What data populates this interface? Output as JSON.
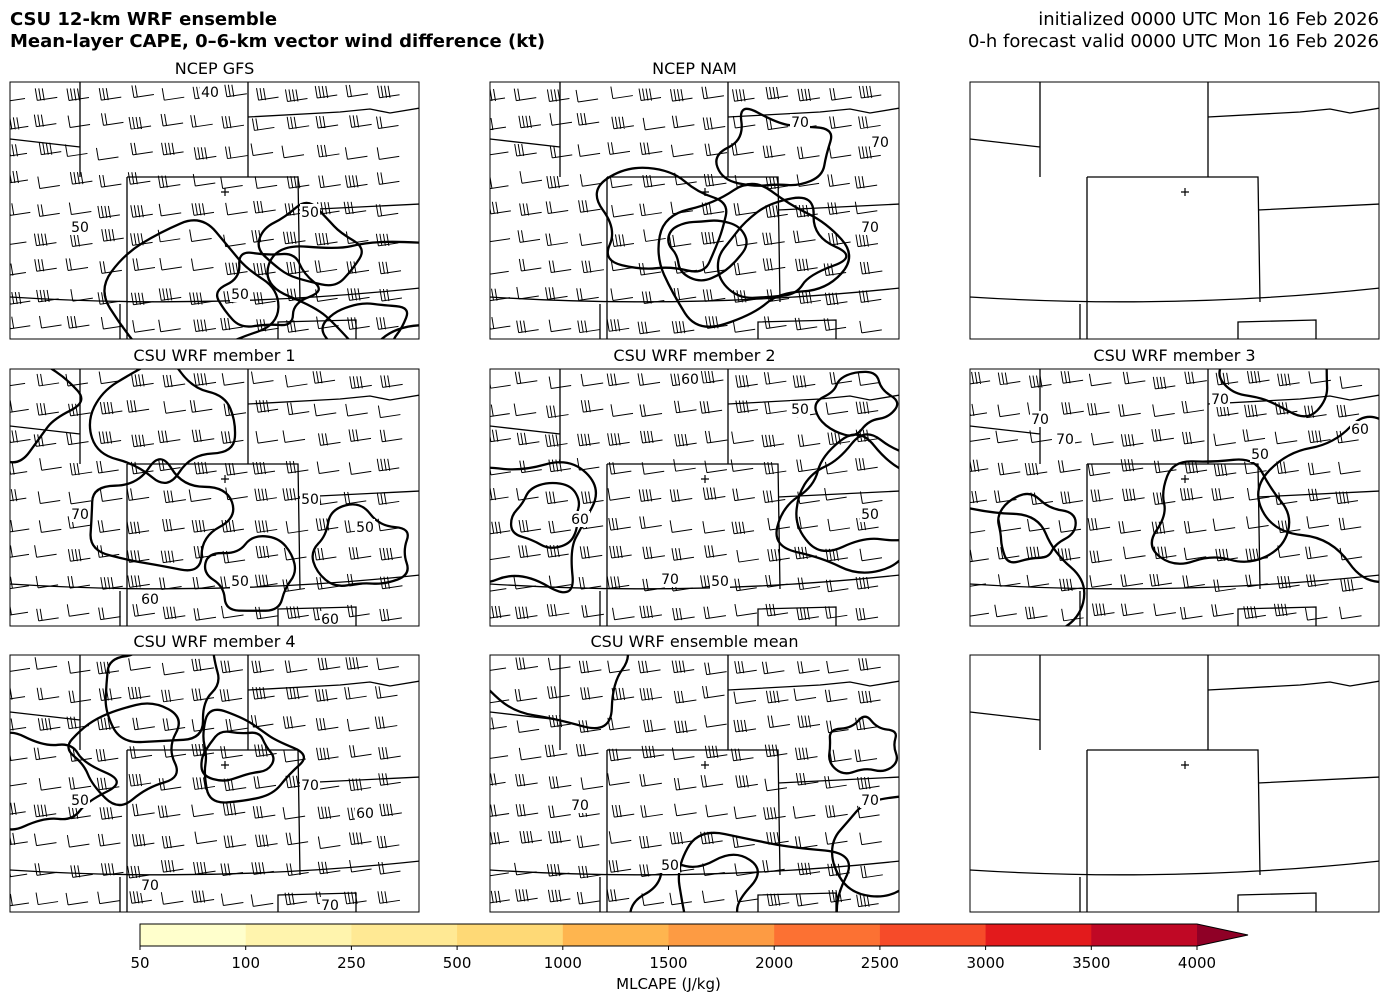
{
  "header": {
    "title": "CSU 12-km WRF ensemble",
    "subtitle": "Mean-layer CAPE, 0–6-km vector wind difference (kt)",
    "initialized": "initialized 0000 UTC Mon 16 Feb 2026",
    "valid": "0-h forecast valid 0000 UTC Mon 16 Feb 2026"
  },
  "panels": [
    {
      "title": "NCEP GFS",
      "contour_labels": [
        40,
        50,
        50,
        50
      ]
    },
    {
      "title": "NCEP NAM",
      "contour_labels": [
        70,
        70,
        70
      ]
    },
    {},
    {
      "title": "CSU WRF member 1",
      "contour_labels": [
        50,
        50,
        70,
        60,
        60,
        50
      ]
    },
    {
      "title": "CSU WRF member 2",
      "contour_labels": [
        50,
        50,
        70,
        60,
        60,
        50
      ]
    },
    {
      "title": "CSU WRF member 3",
      "contour_labels": [
        70,
        50,
        70,
        70,
        60
      ]
    },
    {
      "title": "CSU WRF member 4",
      "contour_labels": [
        70,
        50,
        70,
        70,
        60
      ]
    },
    {
      "title": "CSU WRF ensemble mean",
      "contour_labels": [
        70,
        50,
        70
      ]
    },
    {}
  ],
  "colorbar": {
    "label": "MLCAPE (J/kg)",
    "ticks": [
      50,
      100,
      250,
      500,
      1000,
      1500,
      2000,
      2500,
      3000,
      3500,
      4000
    ],
    "colors": [
      "#ffffcc",
      "#fff4ad",
      "#ffe994",
      "#fed976",
      "#feb54f",
      "#fd9b43",
      "#fc7133",
      "#f64b29",
      "#e31a1c",
      "#c00825"
    ],
    "extend_color": "#8f0026"
  }
}
